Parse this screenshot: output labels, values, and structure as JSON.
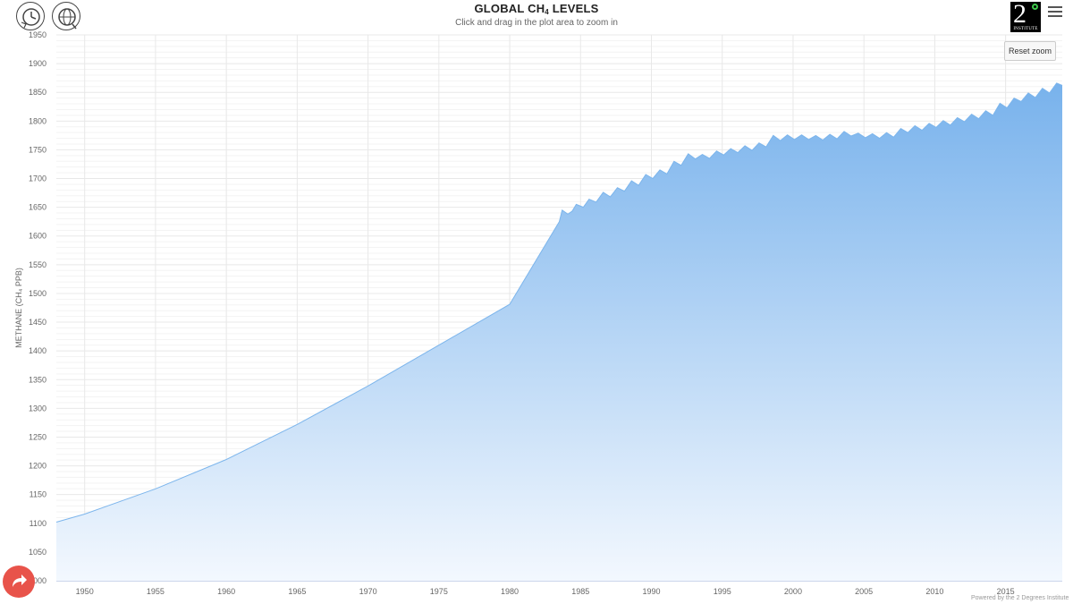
{
  "header": {
    "title_main": "GLOBAL CH",
    "title_sub": "4",
    "title_tail": " LEVELS",
    "subtitle": "Click and drag in the plot area to zoom in"
  },
  "toolbar": {
    "reset_zoom_label": "Reset zoom"
  },
  "brand": {
    "numeral": "2",
    "word": "INSTITUTE"
  },
  "footer": {
    "credits": "Powered by the 2 Degrees Institute"
  },
  "colors": {
    "area_top": "#78b2ec",
    "area_bottom": "#f3f8fe",
    "line": "#7cb5ec",
    "grid": "#e8e8e8",
    "share_button": "#e8534a",
    "brand_degree": "#3ec94b"
  },
  "icons": {
    "menu": "hamburger-menu-icon",
    "share": "share-arrow-icon",
    "logo_left": "history-clock-icon",
    "logo_right": "globe-icon"
  },
  "chart_data": {
    "type": "area",
    "ylabel": "METHANE (CH₄ PPB)",
    "xlim": [
      1948,
      2019
    ],
    "ylim": [
      1000,
      1950
    ],
    "xticks": [
      1950,
      1955,
      1960,
      1965,
      1970,
      1975,
      1980,
      1985,
      1990,
      1995,
      2000,
      2005,
      2010,
      2015
    ],
    "yticks": [
      1000,
      1050,
      1100,
      1150,
      1200,
      1250,
      1300,
      1350,
      1400,
      1450,
      1500,
      1550,
      1600,
      1650,
      1700,
      1750,
      1800,
      1850,
      1900,
      1950
    ],
    "grid": true,
    "legend": "none",
    "series": [
      {
        "points": [
          [
            1948,
            1102
          ],
          [
            1950,
            1116
          ],
          [
            1955,
            1160
          ],
          [
            1960,
            1211
          ],
          [
            1965,
            1272
          ],
          [
            1970,
            1339
          ],
          [
            1975,
            1410
          ],
          [
            1980,
            1481
          ],
          [
            1983.5,
            1625
          ],
          [
            1983.7,
            1645
          ],
          [
            1984.1,
            1638
          ],
          [
            1984.4,
            1643
          ],
          [
            1984.7,
            1655
          ],
          [
            1985.2,
            1650
          ],
          [
            1985.6,
            1664
          ],
          [
            1986.1,
            1659
          ],
          [
            1986.6,
            1676
          ],
          [
            1987.1,
            1668
          ],
          [
            1987.6,
            1684
          ],
          [
            1988.1,
            1678
          ],
          [
            1988.6,
            1696
          ],
          [
            1989.1,
            1688
          ],
          [
            1989.6,
            1707
          ],
          [
            1990.1,
            1700
          ],
          [
            1990.6,
            1715
          ],
          [
            1991.1,
            1708
          ],
          [
            1991.6,
            1730
          ],
          [
            1992.1,
            1723
          ],
          [
            1992.6,
            1743
          ],
          [
            1993.1,
            1734
          ],
          [
            1993.6,
            1742
          ],
          [
            1994.1,
            1735
          ],
          [
            1994.6,
            1748
          ],
          [
            1995.1,
            1741
          ],
          [
            1995.6,
            1752
          ],
          [
            1996.1,
            1745
          ],
          [
            1996.6,
            1757
          ],
          [
            1997.1,
            1749
          ],
          [
            1997.6,
            1762
          ],
          [
            1998.1,
            1755
          ],
          [
            1998.6,
            1775
          ],
          [
            1999.1,
            1766
          ],
          [
            1999.6,
            1776
          ],
          [
            2000.1,
            1768
          ],
          [
            2000.6,
            1776
          ],
          [
            2001.1,
            1768
          ],
          [
            2001.6,
            1775
          ],
          [
            2002.1,
            1767
          ],
          [
            2002.6,
            1777
          ],
          [
            2003.1,
            1769
          ],
          [
            2003.6,
            1782
          ],
          [
            2004.1,
            1774
          ],
          [
            2004.6,
            1779
          ],
          [
            2005.1,
            1771
          ],
          [
            2005.6,
            1778
          ],
          [
            2006.1,
            1770
          ],
          [
            2006.6,
            1780
          ],
          [
            2007.1,
            1772
          ],
          [
            2007.6,
            1787
          ],
          [
            2008.1,
            1780
          ],
          [
            2008.6,
            1792
          ],
          [
            2009.1,
            1784
          ],
          [
            2009.6,
            1796
          ],
          [
            2010.1,
            1789
          ],
          [
            2010.6,
            1801
          ],
          [
            2011.1,
            1793
          ],
          [
            2011.6,
            1806
          ],
          [
            2012.1,
            1799
          ],
          [
            2012.6,
            1812
          ],
          [
            2013.1,
            1804
          ],
          [
            2013.6,
            1818
          ],
          [
            2014.1,
            1810
          ],
          [
            2014.6,
            1831
          ],
          [
            2015.1,
            1823
          ],
          [
            2015.6,
            1840
          ],
          [
            2016.1,
            1834
          ],
          [
            2016.6,
            1849
          ],
          [
            2017.1,
            1841
          ],
          [
            2017.6,
            1857
          ],
          [
            2018.1,
            1849
          ],
          [
            2018.6,
            1866
          ],
          [
            2019,
            1862
          ]
        ]
      }
    ]
  }
}
